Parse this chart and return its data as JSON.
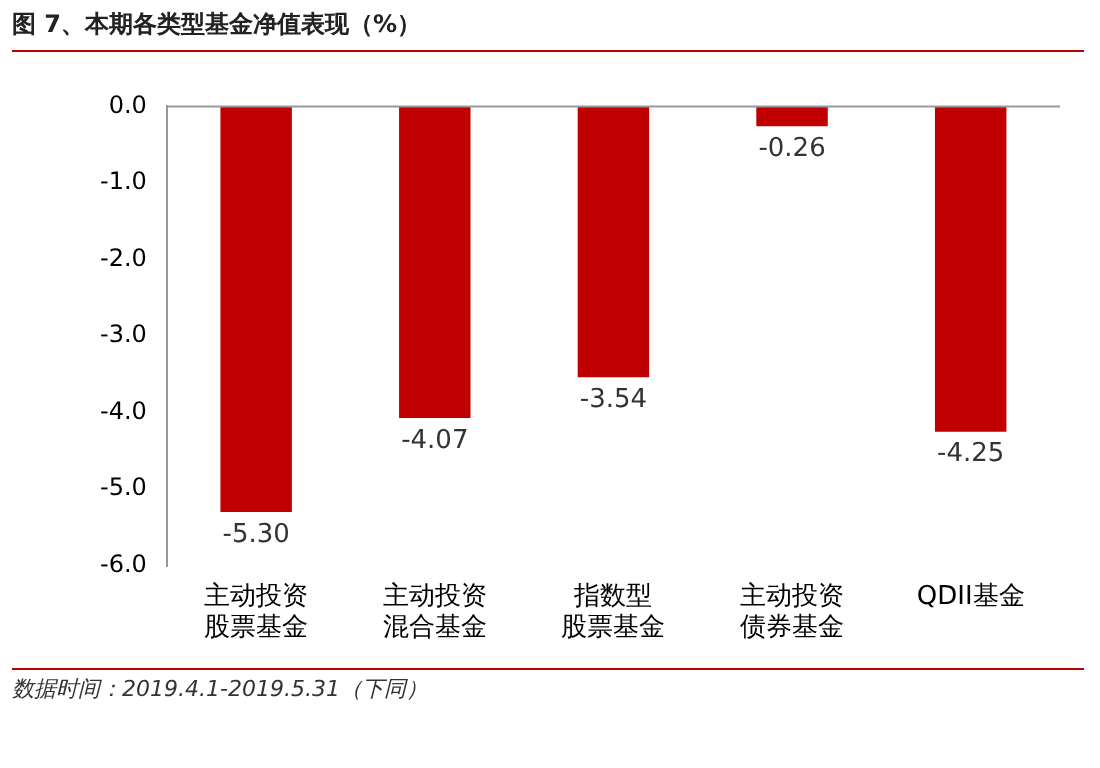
{
  "chart_data": {
    "type": "bar",
    "title": "图 7、本期各类型基金净值表现（%）",
    "categories": [
      "主动投资股票基金",
      "主动投资混合基金",
      "指数型股票基金",
      "主动投资债券基金",
      "QDII基金"
    ],
    "values": [
      -5.3,
      -4.07,
      -3.54,
      -0.26,
      -4.25
    ],
    "value_labels": [
      "-5.30",
      "-4.07",
      "-3.54",
      "-0.26",
      "-4.25"
    ],
    "color": "#c00000",
    "ylim": [
      -6,
      0
    ],
    "yticks": [
      {
        "value": 0,
        "label": "0.0"
      },
      {
        "value": -1,
        "label": "-1.0"
      },
      {
        "value": -2,
        "label": "-2.0"
      },
      {
        "value": -3,
        "label": "-3.0"
      },
      {
        "value": -4,
        "label": "-4.0"
      },
      {
        "value": -5,
        "label": "-5.0"
      },
      {
        "value": -6,
        "label": "-6.0"
      }
    ],
    "grid": false,
    "annotations": [
      "数据时间：2019.4.1-2019.5.31（下同）"
    ]
  }
}
